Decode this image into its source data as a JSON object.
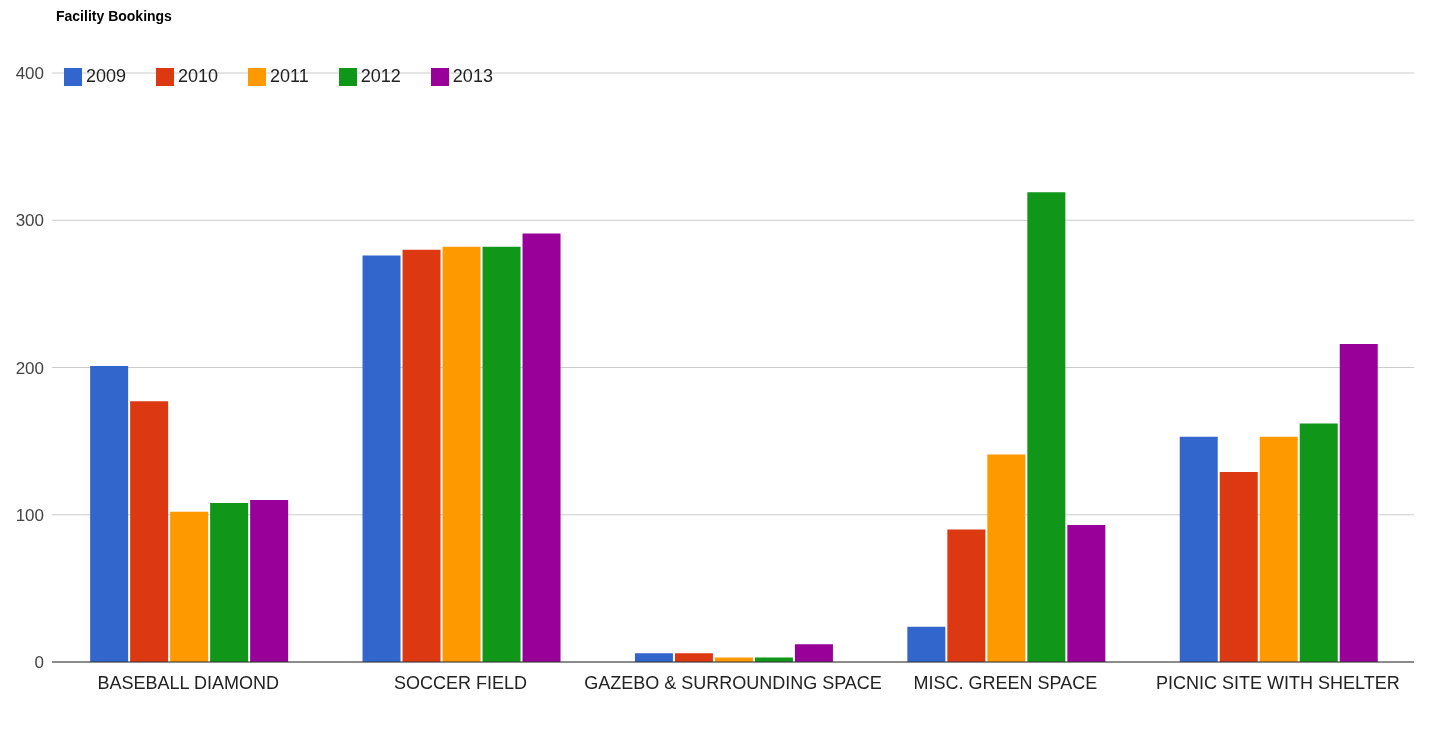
{
  "chart_data": {
    "type": "bar",
    "title": "Facility Bookings",
    "categories": [
      "BASEBALL DIAMOND",
      "SOCCER FIELD",
      "GAZEBO & SURROUNDING SPACE",
      "MISC. GREEN SPACE",
      "PICNIC SITE WITH SHELTER"
    ],
    "series": [
      {
        "name": "2009",
        "color": "#3366cc",
        "values": [
          201,
          276,
          6,
          24,
          153
        ]
      },
      {
        "name": "2010",
        "color": "#dc3912",
        "values": [
          177,
          280,
          6,
          90,
          129
        ]
      },
      {
        "name": "2011",
        "color": "#ff9900",
        "values": [
          102,
          282,
          3,
          141,
          153
        ]
      },
      {
        "name": "2012",
        "color": "#109618",
        "values": [
          108,
          282,
          3,
          319,
          162
        ]
      },
      {
        "name": "2013",
        "color": "#990099",
        "values": [
          110,
          291,
          12,
          93,
          216
        ]
      }
    ],
    "ylim": [
      0,
      400
    ],
    "yticks": [
      0,
      100,
      200,
      300,
      400
    ],
    "grid": "y",
    "legend": "top left"
  }
}
